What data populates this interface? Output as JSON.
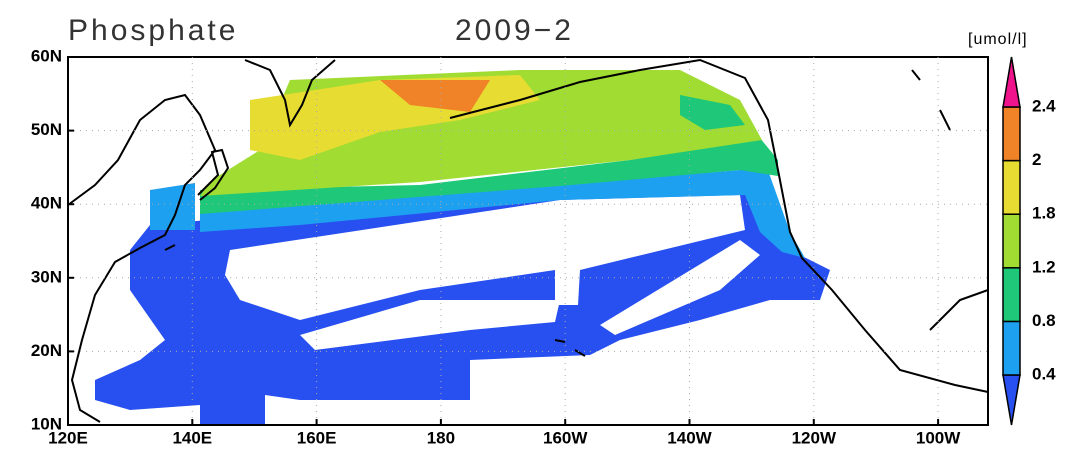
{
  "header": {
    "title": "Phosphate",
    "period": "2009−2"
  },
  "map": {
    "lat_labels": [
      "60N",
      "50N",
      "40N",
      "30N",
      "20N",
      "10N"
    ],
    "lon_labels": [
      "120E",
      "140E",
      "160E",
      "180",
      "160W",
      "140W",
      "120W",
      "100W"
    ]
  },
  "colorbar": {
    "unit": "[umol/l]",
    "levels": [
      0.4,
      0.8,
      1.2,
      1.8,
      2,
      2.4
    ],
    "colors": [
      "#2850f0",
      "#1ea0f0",
      "#1ec878",
      "#a0dc32",
      "#e6dc32",
      "#f08228",
      "#f0148c"
    ]
  }
}
